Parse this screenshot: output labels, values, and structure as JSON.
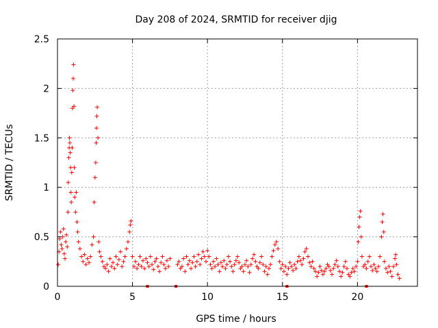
{
  "chart_data": {
    "type": "scatter",
    "title": "Day 208 of 2024, SRMTID for receiver djig",
    "xlabel": "GPS time / hours",
    "ylabel": "SRMTID / TECUs",
    "xlim": [
      0,
      24
    ],
    "ylim": [
      0,
      2.5
    ],
    "xticks": [
      0,
      5,
      10,
      15,
      20
    ],
    "xtick_labels": [
      "0",
      "5",
      "10",
      "15",
      "20"
    ],
    "yticks": [
      0,
      0.5,
      1,
      1.5,
      2,
      2.5
    ],
    "ytick_labels": [
      "0",
      "0.5",
      "1",
      "1.5",
      "2",
      "2.5"
    ],
    "grid": true,
    "marker": "+",
    "color": "#ff0000",
    "series": [
      {
        "name": "SRMTID",
        "points": [
          [
            0.05,
            0.22
          ],
          [
            0.1,
            0.35
          ],
          [
            0.15,
            0.48
          ],
          [
            0.2,
            0.55
          ],
          [
            0.25,
            0.42
          ],
          [
            0.3,
            0.38
          ],
          [
            0.35,
            0.5
          ],
          [
            0.4,
            0.58
          ],
          [
            0.45,
            0.33
          ],
          [
            0.5,
            0.28
          ],
          [
            0.55,
            0.45
          ],
          [
            0.6,
            0.52
          ],
          [
            0.65,
            0.4
          ],
          [
            0.7,
            0.75
          ],
          [
            0.72,
            1.05
          ],
          [
            0.75,
            1.3
          ],
          [
            0.78,
            1.4
          ],
          [
            0.8,
            1.5
          ],
          [
            0.82,
            1.45
          ],
          [
            0.85,
            1.35
          ],
          [
            0.88,
            1.2
          ],
          [
            0.9,
            0.95
          ],
          [
            0.92,
            0.85
          ],
          [
            0.95,
            1.15
          ],
          [
            0.98,
            1.4
          ],
          [
            1.0,
            1.8
          ],
          [
            1.02,
            1.98
          ],
          [
            1.05,
            2.1
          ],
          [
            1.07,
            2.24
          ],
          [
            1.1,
            1.82
          ],
          [
            1.12,
            1.2
          ],
          [
            1.15,
            0.9
          ],
          [
            1.2,
            0.75
          ],
          [
            1.25,
            0.95
          ],
          [
            1.3,
            0.65
          ],
          [
            1.35,
            0.55
          ],
          [
            1.4,
            0.45
          ],
          [
            1.5,
            0.38
          ],
          [
            1.6,
            0.3
          ],
          [
            1.7,
            0.25
          ],
          [
            1.8,
            0.32
          ],
          [
            1.9,
            0.22
          ],
          [
            2.0,
            0.28
          ],
          [
            2.1,
            0.24
          ],
          [
            2.2,
            0.3
          ],
          [
            2.3,
            0.42
          ],
          [
            2.4,
            0.5
          ],
          [
            2.45,
            0.85
          ],
          [
            2.5,
            1.1
          ],
          [
            2.55,
            1.25
          ],
          [
            2.58,
            1.45
          ],
          [
            2.6,
            1.6
          ],
          [
            2.62,
            1.72
          ],
          [
            2.65,
            1.81
          ],
          [
            2.7,
            1.5
          ],
          [
            2.75,
            0.45
          ],
          [
            2.8,
            0.35
          ],
          [
            2.9,
            0.3
          ],
          [
            3.0,
            0.25
          ],
          [
            3.1,
            0.2
          ],
          [
            3.2,
            0.18
          ],
          [
            3.3,
            0.22
          ],
          [
            3.4,
            0.15
          ],
          [
            3.5,
            0.28
          ],
          [
            3.6,
            0.2
          ],
          [
            3.7,
            0.24
          ],
          [
            3.8,
            0.18
          ],
          [
            3.9,
            0.3
          ],
          [
            4.0,
            0.22
          ],
          [
            4.1,
            0.27
          ],
          [
            4.2,
            0.35
          ],
          [
            4.3,
            0.2
          ],
          [
            4.4,
            0.25
          ],
          [
            4.5,
            0.3
          ],
          [
            4.6,
            0.38
          ],
          [
            4.7,
            0.45
          ],
          [
            4.8,
            0.55
          ],
          [
            4.85,
            0.62
          ],
          [
            4.9,
            0.66
          ],
          [
            5.0,
            0.3
          ],
          [
            5.1,
            0.2
          ],
          [
            5.2,
            0.25
          ],
          [
            5.3,
            0.18
          ],
          [
            5.4,
            0.22
          ],
          [
            5.5,
            0.3
          ],
          [
            5.6,
            0.2
          ],
          [
            5.7,
            0.26
          ],
          [
            5.8,
            0.18
          ],
          [
            5.9,
            0.28
          ],
          [
            6.0,
            0.24
          ],
          [
            6.1,
            0.2
          ],
          [
            6.2,
            0.3
          ],
          [
            6.3,
            0.22
          ],
          [
            6.4,
            0.17
          ],
          [
            6.5,
            0.25
          ],
          [
            6.6,
            0.28
          ],
          [
            6.7,
            0.2
          ],
          [
            6.8,
            0.15
          ],
          [
            6.9,
            0.24
          ],
          [
            7.0,
            0.3
          ],
          [
            7.1,
            0.22
          ],
          [
            7.2,
            0.18
          ],
          [
            7.3,
            0.26
          ],
          [
            7.4,
            0.2
          ],
          [
            7.5,
            0.28
          ],
          [
            8.0,
            0.22
          ],
          [
            8.1,
            0.25
          ],
          [
            8.2,
            0.18
          ],
          [
            8.3,
            0.2
          ],
          [
            8.4,
            0.28
          ],
          [
            8.5,
            0.15
          ],
          [
            8.6,
            0.3
          ],
          [
            8.7,
            0.22
          ],
          [
            8.8,
            0.26
          ],
          [
            8.9,
            0.18
          ],
          [
            9.0,
            0.24
          ],
          [
            9.1,
            0.3
          ],
          [
            9.2,
            0.2
          ],
          [
            9.3,
            0.25
          ],
          [
            9.4,
            0.32
          ],
          [
            9.5,
            0.22
          ],
          [
            9.6,
            0.28
          ],
          [
            9.7,
            0.35
          ],
          [
            9.8,
            0.3
          ],
          [
            9.9,
            0.25
          ],
          [
            10.0,
            0.36
          ],
          [
            10.1,
            0.3
          ],
          [
            10.2,
            0.22
          ],
          [
            10.3,
            0.18
          ],
          [
            10.4,
            0.25
          ],
          [
            10.5,
            0.2
          ],
          [
            10.6,
            0.28
          ],
          [
            10.7,
            0.22
          ],
          [
            10.8,
            0.15
          ],
          [
            10.9,
            0.24
          ],
          [
            11.0,
            0.2
          ],
          [
            11.1,
            0.26
          ],
          [
            11.2,
            0.18
          ],
          [
            11.3,
            0.22
          ],
          [
            11.4,
            0.3
          ],
          [
            11.5,
            0.25
          ],
          [
            11.6,
            0.2
          ],
          [
            11.7,
            0.15
          ],
          [
            11.8,
            0.22
          ],
          [
            11.9,
            0.26
          ],
          [
            12.0,
            0.3
          ],
          [
            12.1,
            0.24
          ],
          [
            12.2,
            0.18
          ],
          [
            12.3,
            0.2
          ],
          [
            12.4,
            0.15
          ],
          [
            12.5,
            0.22
          ],
          [
            12.6,
            0.26
          ],
          [
            12.7,
            0.2
          ],
          [
            12.8,
            0.14
          ],
          [
            12.9,
            0.22
          ],
          [
            13.0,
            0.28
          ],
          [
            13.1,
            0.32
          ],
          [
            13.2,
            0.25
          ],
          [
            13.3,
            0.2
          ],
          [
            13.4,
            0.18
          ],
          [
            13.5,
            0.24
          ],
          [
            13.6,
            0.3
          ],
          [
            13.7,
            0.22
          ],
          [
            13.8,
            0.15
          ],
          [
            13.9,
            0.2
          ],
          [
            14.0,
            0.12
          ],
          [
            14.1,
            0.18
          ],
          [
            14.2,
            0.22
          ],
          [
            14.3,
            0.3
          ],
          [
            14.4,
            0.36
          ],
          [
            14.5,
            0.42
          ],
          [
            14.6,
            0.45
          ],
          [
            14.7,
            0.38
          ],
          [
            14.8,
            0.25
          ],
          [
            14.9,
            0.18
          ],
          [
            15.0,
            0.22
          ],
          [
            15.1,
            0.15
          ],
          [
            15.2,
            0.2
          ],
          [
            15.3,
            0.12
          ],
          [
            15.4,
            0.18
          ],
          [
            15.5,
            0.24
          ],
          [
            15.6,
            0.2
          ],
          [
            15.7,
            0.16
          ],
          [
            15.8,
            0.22
          ],
          [
            15.9,
            0.18
          ],
          [
            16.0,
            0.25
          ],
          [
            16.1,
            0.3
          ],
          [
            16.2,
            0.26
          ],
          [
            16.3,
            0.22
          ],
          [
            16.4,
            0.28
          ],
          [
            16.5,
            0.35
          ],
          [
            16.6,
            0.38
          ],
          [
            16.7,
            0.3
          ],
          [
            16.8,
            0.24
          ],
          [
            16.9,
            0.2
          ],
          [
            17.0,
            0.25
          ],
          [
            17.1,
            0.18
          ],
          [
            17.2,
            0.15
          ],
          [
            17.3,
            0.1
          ],
          [
            17.4,
            0.14
          ],
          [
            17.5,
            0.2
          ],
          [
            17.6,
            0.16
          ],
          [
            17.7,
            0.12
          ],
          [
            17.8,
            0.15
          ],
          [
            17.9,
            0.18
          ],
          [
            18.0,
            0.22
          ],
          [
            18.1,
            0.2
          ],
          [
            18.2,
            0.16
          ],
          [
            18.3,
            0.12
          ],
          [
            18.4,
            0.18
          ],
          [
            18.5,
            0.22
          ],
          [
            18.6,
            0.26
          ],
          [
            18.7,
            0.2
          ],
          [
            18.8,
            0.15
          ],
          [
            18.9,
            0.1
          ],
          [
            19.0,
            0.14
          ],
          [
            19.1,
            0.2
          ],
          [
            19.2,
            0.25
          ],
          [
            19.3,
            0.18
          ],
          [
            19.4,
            0.12
          ],
          [
            19.5,
            0.1
          ],
          [
            19.6,
            0.14
          ],
          [
            19.7,
            0.18
          ],
          [
            19.8,
            0.15
          ],
          [
            19.9,
            0.2
          ],
          [
            20.0,
            0.25
          ],
          [
            20.05,
            0.45
          ],
          [
            20.1,
            0.6
          ],
          [
            20.15,
            0.7
          ],
          [
            20.2,
            0.76
          ],
          [
            20.25,
            0.5
          ],
          [
            20.3,
            0.3
          ],
          [
            20.4,
            0.2
          ],
          [
            20.5,
            0.22
          ],
          [
            20.6,
            0.18
          ],
          [
            20.7,
            0.25
          ],
          [
            20.8,
            0.3
          ],
          [
            20.9,
            0.2
          ],
          [
            21.0,
            0.16
          ],
          [
            21.1,
            0.22
          ],
          [
            21.2,
            0.18
          ],
          [
            21.3,
            0.15
          ],
          [
            21.4,
            0.2
          ],
          [
            21.5,
            0.3
          ],
          [
            21.6,
            0.5
          ],
          [
            21.65,
            0.65
          ],
          [
            21.7,
            0.73
          ],
          [
            21.75,
            0.55
          ],
          [
            21.8,
            0.25
          ],
          [
            21.9,
            0.18
          ],
          [
            22.0,
            0.14
          ],
          [
            22.1,
            0.2
          ],
          [
            22.2,
            0.15
          ],
          [
            22.3,
            0.1
          ],
          [
            22.4,
            0.2
          ],
          [
            22.5,
            0.28
          ],
          [
            22.55,
            0.32
          ],
          [
            22.6,
            0.22
          ],
          [
            22.7,
            0.12
          ],
          [
            22.8,
            0.08
          ]
        ]
      }
    ],
    "baseline_markers": [
      6.0,
      7.9,
      15.3,
      20.6
    ]
  }
}
